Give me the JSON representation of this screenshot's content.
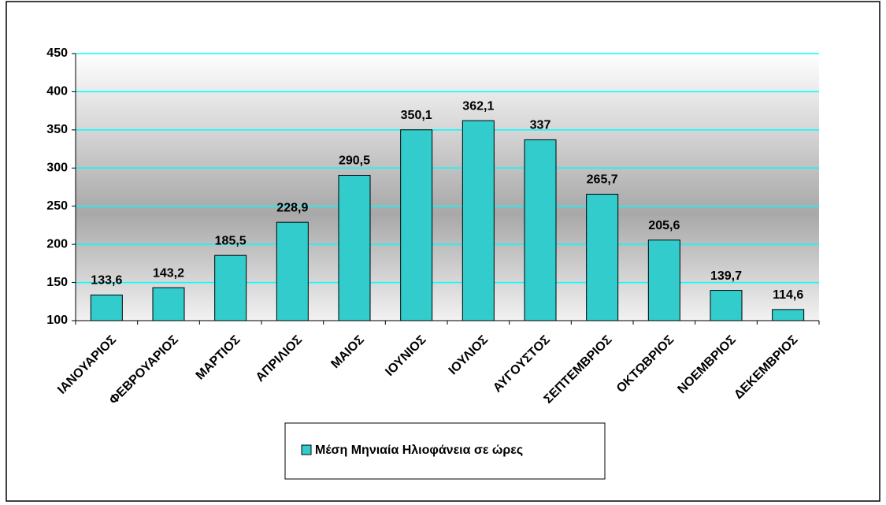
{
  "chart_data": {
    "type": "bar",
    "categories": [
      "ΙΑΝΟΥΑΡΙΟΣ",
      "ΦΕΒΡΟΥΑΡΙΟΣ",
      "ΜΑΡΤΙΟΣ",
      "ΑΠΡΙΛΙΟΣ",
      "ΜΑΙΟΣ",
      "ΙΟΥΝΙΟΣ",
      "ΙΟΥΛΙΟΣ",
      "ΑΥΓΟΥΣΤΟΣ",
      "ΣΕΠΤΕΜΒΡΙΟΣ",
      "ΟΚΤΩΒΡΙΟΣ",
      "ΝΟΕΜΒΡΙΟΣ",
      "ΔΕΚΕΜΒΡΙΟΣ"
    ],
    "series": [
      {
        "name": "Μέση Μηνιαία Ηλιοφάνεια σε ώρες",
        "color": "#33cccc",
        "values": [
          133.6,
          143.2,
          185.5,
          228.9,
          290.5,
          350.1,
          362.1,
          337,
          265.7,
          205.6,
          139.7,
          114.6
        ],
        "value_labels": [
          "133,6",
          "143,2",
          "185,5",
          "228,9",
          "290,5",
          "350,1",
          "362,1",
          "337",
          "265,7",
          "205,6",
          "139,7",
          "114,6"
        ]
      }
    ],
    "ylim": [
      100,
      450
    ],
    "yticks": [
      100,
      150,
      200,
      250,
      300,
      350,
      400,
      450
    ],
    "grid": true,
    "grid_color": "#00ffff",
    "legend": "bottom"
  }
}
